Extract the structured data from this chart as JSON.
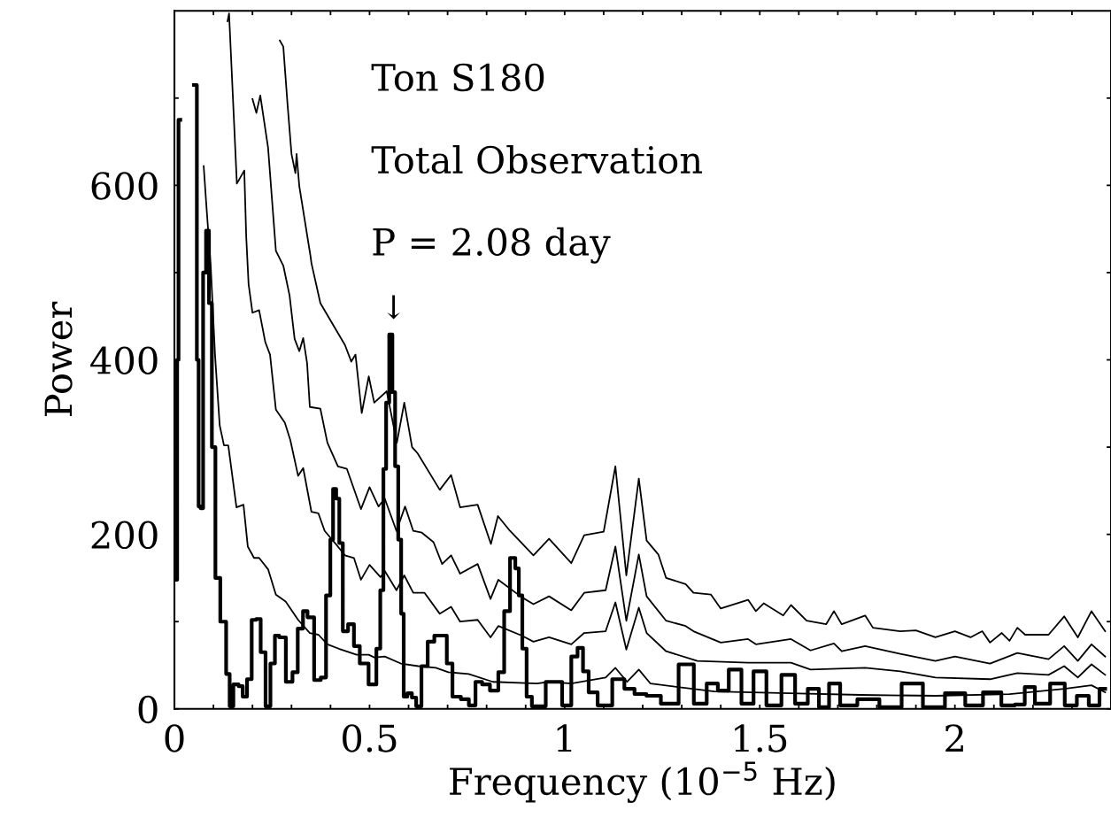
{
  "chart_data": {
    "type": "line",
    "xlabel": "Frequency (10$^{−5}$ Hz)",
    "ylabel": "Power",
    "xlim": [
      0,
      2.4
    ],
    "ylim": [
      0,
      800
    ],
    "xticks": [
      0,
      {
        "value": 0.1,
        "label": null
      },
      {
        "value": 0.2,
        "label": null
      },
      {
        "value": 0.3,
        "label": null
      },
      {
        "value": 0.4,
        "label": null
      },
      0.5,
      {
        "value": 0.6,
        "label": null
      },
      {
        "value": 0.7,
        "label": null
      },
      {
        "value": 0.8,
        "label": null
      },
      {
        "value": 0.9,
        "label": null
      },
      1,
      {
        "value": 1.1,
        "label": null
      },
      {
        "value": 1.2,
        "label": null
      },
      {
        "value": 1.3,
        "label": null
      },
      {
        "value": 1.4,
        "label": null
      },
      1.5,
      {
        "value": 1.6,
        "label": null
      },
      {
        "value": 1.7,
        "label": null
      },
      {
        "value": 1.8,
        "label": null
      },
      {
        "value": 1.9,
        "label": null
      },
      2,
      {
        "value": 2.1,
        "label": null
      },
      {
        "value": 2.2,
        "label": null
      },
      {
        "value": 2.3,
        "label": null
      }
    ],
    "yticks": [
      0,
      {
        "value": 100,
        "label": null
      },
      200,
      {
        "value": 300,
        "label": null
      },
      400,
      {
        "value": 500,
        "label": null
      },
      600,
      {
        "value": 700,
        "label": null
      }
    ],
    "grid": false,
    "legend": false,
    "annotations": [
      "Ton S180",
      "Total Observation",
      "P = 2.08 day",
      "↓"
    ],
    "series": [
      {
        "color": "#000000",
        "x": [
          0.27,
          0.279,
          0.29,
          0.3,
          0.31,
          0.313,
          0.32,
          0.349,
          0.351,
          0.374,
          0.437,
          0.449,
          0.453,
          0.464,
          0.48,
          0.498,
          0.512,
          0.544,
          0.57,
          0.589,
          0.609,
          0.623,
          0.68,
          0.709,
          0.732,
          0.777,
          0.811,
          0.829,
          0.86,
          0.92,
          0.96,
          1.017,
          1.05,
          1.1,
          1.13,
          1.158,
          1.19,
          1.21,
          1.24,
          1.26,
          1.31,
          1.33,
          1.375,
          1.4,
          1.47,
          1.49,
          1.51,
          1.56,
          1.58,
          1.62,
          1.67,
          1.69,
          1.71,
          1.77,
          1.79,
          1.86,
          1.9,
          1.95,
          2.0,
          2.04,
          2.07,
          2.09,
          2.12,
          2.14,
          2.16,
          2.18,
          2.24,
          2.28,
          2.315,
          2.35,
          2.385
        ],
        "values": [
          766,
          759,
          692,
          636,
          614,
          636,
          599,
          518,
          511,
          465,
          417,
          403,
          398,
          406,
          339,
          381,
          351,
          364,
          305,
          351,
          300,
          293,
          251,
          268,
          231,
          234,
          189,
          221,
          204,
          176,
          195,
          167,
          199,
          203,
          278,
          153,
          264,
          193,
          177,
          150,
          143,
          133,
          131,
          115,
          125,
          112,
          121,
          107,
          119,
          101,
          97,
          112,
          97,
          107,
          93,
          89,
          90,
          82,
          89,
          82,
          89,
          76,
          87,
          78,
          93,
          85,
          85,
          106,
          82,
          112,
          89
        ]
      },
      {
        "color": "#000000",
        "x": [
          0.2,
          0.21,
          0.22,
          0.24,
          0.26,
          0.279,
          0.295,
          0.308,
          0.32,
          0.33,
          0.34,
          0.347,
          0.374,
          0.392,
          0.419,
          0.442,
          0.478,
          0.5,
          0.523,
          0.539,
          0.569,
          0.591,
          0.612,
          0.634,
          0.664,
          0.686,
          0.709,
          0.732,
          0.777,
          0.81,
          0.83,
          0.89,
          0.92,
          0.96,
          1.017,
          1.05,
          1.105,
          1.13,
          1.158,
          1.19,
          1.21,
          1.26,
          1.31,
          1.33,
          1.4,
          1.47,
          1.49,
          1.58,
          1.63,
          1.69,
          1.71,
          1.77,
          1.86,
          1.95,
          2.0,
          2.09,
          2.16,
          2.24,
          2.28,
          2.315,
          2.35,
          2.385
        ],
        "values": [
          699,
          683,
          703,
          643,
          525,
          508,
          474,
          424,
          410,
          425,
          396,
          346,
          344,
          305,
          278,
          275,
          229,
          254,
          232,
          241,
          204,
          232,
          204,
          202,
          191,
          166,
          176,
          155,
          166,
          126,
          148,
          128,
          120,
          129,
          113,
          133,
          136,
          186,
          101,
          177,
          129,
          101,
          95,
          89,
          76,
          80,
          74,
          80,
          67,
          75,
          66,
          72,
          63,
          55,
          60,
          52,
          64,
          57,
          72,
          55,
          74,
          60
        ]
      },
      {
        "color": "#000000",
        "x": [
          0.136,
          0.14,
          0.16,
          0.179,
          0.184,
          0.19,
          0.2,
          0.217,
          0.233,
          0.245,
          0.26,
          0.283,
          0.297,
          0.317,
          0.33,
          0.351,
          0.369,
          0.385,
          0.419,
          0.437,
          0.46,
          0.478,
          0.5,
          0.528,
          0.539,
          0.569,
          0.589,
          0.612,
          0.641,
          0.68,
          0.709,
          0.732,
          0.777,
          0.81,
          0.83,
          0.89,
          0.92,
          0.96,
          1.017,
          1.05,
          1.105,
          1.13,
          1.158,
          1.19,
          1.21,
          1.26,
          1.34,
          1.47,
          1.58,
          1.63,
          1.77,
          1.86,
          1.95,
          2.09,
          2.16,
          2.24,
          2.28,
          2.315,
          2.35,
          2.385
        ],
        "values": [
          788,
          797,
          602,
          617,
          541,
          487,
          454,
          457,
          420,
          406,
          343,
          328,
          308,
          267,
          276,
          226,
          224,
          204,
          186,
          176,
          173,
          148,
          165,
          151,
          158,
          136,
          153,
          133,
          133,
          109,
          117,
          100,
          102,
          82,
          95,
          84,
          77,
          82,
          74,
          87,
          89,
          122,
          68,
          116,
          87,
          66,
          55,
          53,
          53,
          45,
          47,
          43,
          36,
          34,
          41,
          39,
          49,
          36,
          51,
          39
        ]
      },
      {
        "color": "#000000",
        "x": [
          0.075,
          0.082,
          0.093,
          0.104,
          0.116,
          0.127,
          0.138,
          0.159,
          0.177,
          0.188,
          0.204,
          0.217,
          0.24,
          0.26,
          0.285,
          0.317,
          0.347,
          0.369,
          0.392,
          0.421,
          0.467,
          0.498,
          0.512,
          0.539,
          0.58,
          0.625,
          0.67,
          0.702,
          0.754,
          0.816,
          0.929,
          0.96,
          1.017,
          1.105,
          1.13,
          1.16,
          1.19,
          1.22,
          1.29,
          1.384,
          1.575,
          1.76,
          1.95,
          2.14,
          2.28,
          2.35,
          2.385
        ],
        "values": [
          622,
          576,
          508,
          406,
          325,
          302,
          302,
          231,
          234,
          186,
          173,
          173,
          160,
          131,
          123,
          102,
          87,
          85,
          74,
          69,
          62,
          62,
          59,
          60,
          52,
          49,
          47,
          42,
          40,
          31,
          29,
          31,
          29,
          36,
          47,
          31,
          45,
          29,
          25,
          20,
          18,
          16,
          15,
          17,
          23,
          27,
          19
        ]
      },
      {
        "type": "step",
        "color": "#000000",
        "x": [
          0.005,
          0.009,
          0.012,
          0.018,
          0.03,
          0.045,
          0.055,
          0.06,
          0.064,
          0.07,
          0.077,
          0.085,
          0.092,
          0.1,
          0.11,
          0.125,
          0.14,
          0.143,
          0.159,
          0.17,
          0.18,
          0.192,
          0.204,
          0.215,
          0.227,
          0.24,
          0.252,
          0.263,
          0.274,
          0.297,
          0.308,
          0.324,
          0.335,
          0.347,
          0.369,
          0.381,
          0.396,
          0.403,
          0.41,
          0.419,
          0.426,
          0.437,
          0.453,
          0.467,
          0.483,
          0.512,
          0.523,
          0.532,
          0.539,
          0.546,
          0.555,
          0.562,
          0.569,
          0.578,
          0.584,
          0.591,
          0.603,
          0.614,
          0.625,
          0.641,
          0.657,
          0.675,
          0.691,
          0.705,
          0.72,
          0.748,
          0.761,
          0.782,
          0.795,
          0.822,
          0.838,
          0.852,
          0.868,
          0.879,
          0.886,
          0.897,
          0.908,
          0.924,
          0.979,
          1.008,
          1.026,
          1.04,
          1.054,
          1.069,
          1.1,
          1.144,
          1.162,
          1.196,
          1.223,
          1.27,
          1.314,
          1.348,
          1.38,
          1.405,
          1.436,
          1.47,
          1.498,
          1.536,
          1.575,
          1.606,
          1.64,
          1.663,
          1.692,
          1.72,
          1.78,
          1.833,
          1.894,
          1.942,
          2.007,
          2.046,
          2.098,
          2.14,
          2.168,
          2.19,
          2.22,
          2.268,
          2.295,
          2.33,
          2.356,
          2.385
        ],
        "values": [
          148,
          400,
          675,
          null,
          null,
          null,
          715,
          400,
          232,
          230,
          500,
          548,
          465,
          300,
          150,
          100,
          40,
          3,
          28,
          26,
          14,
          34,
          102,
          103,
          65,
          3,
          52,
          84,
          82,
          31,
          42,
          92,
          112,
          105,
          33,
          36,
          130,
          194,
          252,
          241,
          190,
          89,
          97,
          72,
          52,
          28,
          69,
          136,
          275,
          351,
          429,
          363,
          278,
          194,
          109,
          14,
          18,
          13,
          3,
          49,
          77,
          84,
          84,
          52,
          14,
          11,
          4,
          31,
          28,
          21,
          42,
          112,
          173,
          161,
          130,
          69,
          14,
          3,
          31,
          4,
          60,
          70,
          43,
          19,
          4,
          34,
          23,
          17,
          15,
          6,
          51,
          6,
          29,
          21,
          45,
          6,
          43,
          4,
          39,
          6,
          23,
          2,
          29,
          4,
          11,
          2,
          29,
          2,
          18,
          4,
          19,
          4,
          5,
          25,
          6,
          29,
          4,
          15,
          4,
          23
        ]
      }
    ]
  }
}
